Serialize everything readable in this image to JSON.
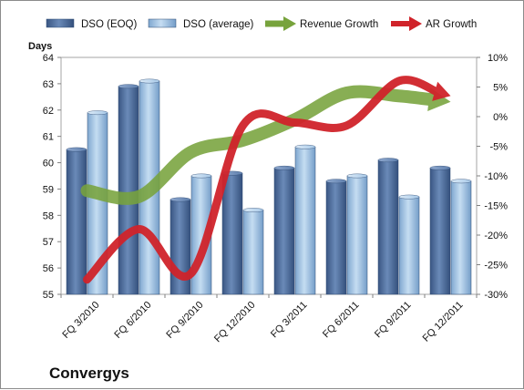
{
  "chart_data": {
    "type": "bar",
    "title": "Convergys",
    "ylabel": "Days",
    "ylim": [
      55,
      64
    ],
    "y2lim": [
      -30,
      10
    ],
    "y2_tick_format": "percent",
    "grid": false,
    "legend_position": "top",
    "categories": [
      "FQ 3/2010",
      "FQ 6/2010",
      "FQ 9/2010",
      "FQ 12/2010",
      "FQ 3/2011",
      "FQ 6/2011",
      "FQ 9/2011",
      "FQ 12/2011"
    ],
    "series": [
      {
        "name": "DSO (EOQ)",
        "kind": "bar",
        "axis": "left",
        "color": "#4f6e9f",
        "values": [
          60.5,
          62.9,
          58.6,
          59.6,
          59.8,
          59.3,
          60.1,
          59.8
        ]
      },
      {
        "name": "DSO (average)",
        "kind": "bar",
        "axis": "left",
        "color": "#9dc3e6",
        "values": [
          61.9,
          63.1,
          59.5,
          58.2,
          60.6,
          59.5,
          58.7,
          59.3
        ]
      },
      {
        "name": "Revenue Growth",
        "kind": "line-arrow",
        "axis": "right",
        "color": "#77a33c",
        "values": [
          -12.5,
          -13.5,
          -6.0,
          -4.0,
          -0.5,
          4.0,
          3.5,
          2.5
        ]
      },
      {
        "name": "AR Growth",
        "kind": "line-arrow",
        "axis": "right",
        "color": "#d0232a",
        "values": [
          -27.5,
          -19.0,
          -26.5,
          -1.5,
          -1.0,
          -1.5,
          6.0,
          3.5
        ]
      }
    ],
    "left_ticks": [
      55,
      56,
      57,
      58,
      59,
      60,
      61,
      62,
      63,
      64
    ],
    "right_ticks": [
      -30,
      -25,
      -20,
      -15,
      -10,
      -5,
      0,
      5,
      10
    ]
  }
}
